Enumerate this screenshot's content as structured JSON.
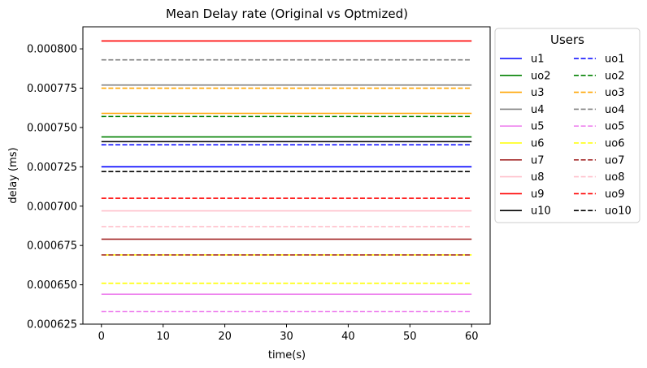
{
  "chart_data": {
    "type": "line",
    "title": "Mean Delay rate (Original vs Optmized)",
    "xlabel": "time(s)",
    "ylabel": "delay (ms)",
    "xlim": [
      -3,
      63
    ],
    "ylim": [
      0.000625,
      0.000814
    ],
    "x_ticks": [
      0,
      10,
      20,
      30,
      40,
      50,
      60
    ],
    "x_tick_labels": [
      "0",
      "10",
      "20",
      "30",
      "40",
      "50",
      "60"
    ],
    "y_ticks": [
      0.000625,
      0.00065,
      0.000675,
      0.0007,
      0.000725,
      0.00075,
      0.000775,
      0.0008
    ],
    "y_tick_labels": [
      "0.000625",
      "0.000650",
      "0.000675",
      "0.000700",
      "0.000725",
      "0.000750",
      "0.000775",
      "0.000800"
    ],
    "grid": false,
    "legend": {
      "title": "Users",
      "placement": "outside-right",
      "columns": 2
    },
    "x": [
      0,
      60
    ],
    "series": [
      {
        "name": "u1",
        "color": "#0000ff",
        "dash": "solid",
        "value": 0.000725
      },
      {
        "name": "uo2",
        "color": "#008000",
        "dash": "solid",
        "value": 0.000744
      },
      {
        "name": "u3",
        "color": "#ffa500",
        "dash": "solid",
        "value": 0.000759
      },
      {
        "name": "u4",
        "color": "#808080",
        "dash": "solid",
        "value": 0.000777
      },
      {
        "name": "u5",
        "color": "#ee82ee",
        "dash": "solid",
        "value": 0.000644
      },
      {
        "name": "u6",
        "color": "#ffff00",
        "dash": "solid",
        "value": 0.000669
      },
      {
        "name": "u7",
        "color": "#a52a2a",
        "dash": "solid",
        "value": 0.000679
      },
      {
        "name": "u8",
        "color": "#ffc0cb",
        "dash": "solid",
        "value": 0.000697
      },
      {
        "name": "u9",
        "color": "#ff0000",
        "dash": "solid",
        "value": 0.000805
      },
      {
        "name": "u10",
        "color": "#000000",
        "dash": "solid",
        "value": 0.000741
      },
      {
        "name": "uo1",
        "color": "#0000ff",
        "dash": "dashed",
        "value": 0.000739
      },
      {
        "name": "uo2",
        "color": "#008000",
        "dash": "dashed",
        "value": 0.000757
      },
      {
        "name": "uo3",
        "color": "#ffa500",
        "dash": "dashed",
        "value": 0.000775
      },
      {
        "name": "uo4",
        "color": "#808080",
        "dash": "dashed",
        "value": 0.000793
      },
      {
        "name": "uo5",
        "color": "#ee82ee",
        "dash": "dashed",
        "value": 0.000633
      },
      {
        "name": "uo6",
        "color": "#ffff00",
        "dash": "dashed",
        "value": 0.000651
      },
      {
        "name": "uo7",
        "color": "#a52a2a",
        "dash": "dashed",
        "value": 0.000669
      },
      {
        "name": "uo8",
        "color": "#ffc0cb",
        "dash": "dashed",
        "value": 0.000687
      },
      {
        "name": "uo9",
        "color": "#ff0000",
        "dash": "dashed",
        "value": 0.000705
      },
      {
        "name": "uo10",
        "color": "#000000",
        "dash": "dashed",
        "value": 0.000722
      }
    ]
  }
}
